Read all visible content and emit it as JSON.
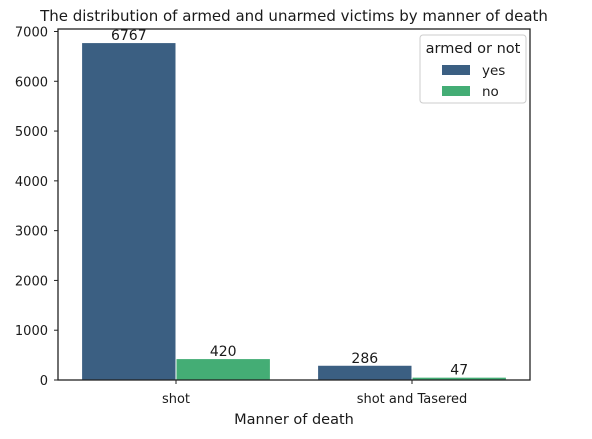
{
  "chart_data": {
    "type": "bar",
    "title": "The distribution of armed and unarmed victims by manner of death",
    "xlabel": "Manner of death",
    "ylabel": "",
    "categories": [
      "shot",
      "shot and Tasered"
    ],
    "series": [
      {
        "name": "yes",
        "values": [
          6767,
          286
        ],
        "color": "#3b5f82"
      },
      {
        "name": "no",
        "values": [
          420,
          47
        ],
        "color": "#44ad75"
      }
    ],
    "ylim": [
      0,
      7050
    ],
    "yticks": [
      0,
      1000,
      2000,
      3000,
      4000,
      5000,
      6000,
      7000
    ],
    "legend": {
      "title": "armed or not",
      "placement": "top-right"
    },
    "grid": false
  }
}
